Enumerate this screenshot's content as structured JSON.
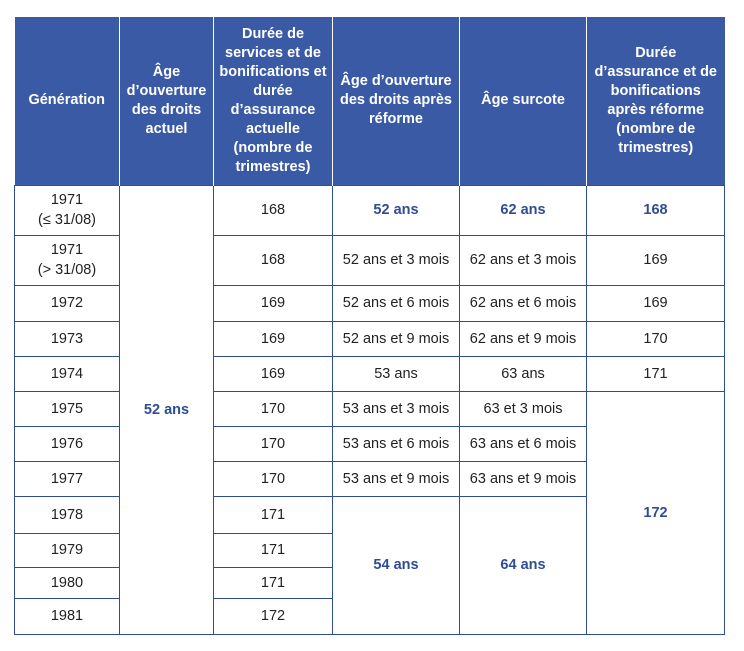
{
  "headers": [
    "Génération",
    "Âge d’ouverture des droits actuel",
    "Durée de services et de bonifications et durée d’assurance actuelle (nombre de trimestres)",
    "Âge d’ouverture des droits après réforme",
    "Âge surcote",
    "Durée d’assurance et de bonifications après réforme (nombre de trimestres)"
  ],
  "current_opening_age": "52 ans",
  "rows": [
    {
      "gen": "1971",
      "gen_sub": "(≤ 31/08)",
      "duration": "168",
      "new_age": "52 ans",
      "surcote": "62 ans",
      "new_duration": "168"
    },
    {
      "gen": "1971",
      "gen_sub": "(> 31/08)",
      "duration": "168",
      "new_age": "52 ans et 3 mois",
      "surcote": "62 ans et 3 mois",
      "new_duration": "169"
    },
    {
      "gen": "1972",
      "duration": "169",
      "new_age": "52 ans et 6 mois",
      "surcote": "62 ans et 6 mois",
      "new_duration": "169"
    },
    {
      "gen": "1973",
      "duration": "169",
      "new_age": "52 ans et 9 mois",
      "surcote": "62 ans et 9 mois",
      "new_duration": "170"
    },
    {
      "gen": "1974",
      "duration": "169",
      "new_age": "53 ans",
      "surcote": "63 ans",
      "new_duration": "171"
    },
    {
      "gen": "1975",
      "duration": "170",
      "new_age": "53 ans et 3 mois",
      "surcote": "63 et 3 mois"
    },
    {
      "gen": "1976",
      "duration": "170",
      "new_age": "53 ans et 6 mois",
      "surcote": "63 ans et 6 mois"
    },
    {
      "gen": "1977",
      "duration": "170",
      "new_age": "53 ans et 9 mois",
      "surcote": "63 ans et 9 mois"
    },
    {
      "gen": "1978",
      "duration": "171"
    },
    {
      "gen": "1979",
      "duration": "171"
    },
    {
      "gen": "1980",
      "duration": "171"
    },
    {
      "gen": "1981",
      "duration": "172"
    }
  ],
  "merged_new_age": "54 ans",
  "merged_surcote": "64 ans",
  "merged_new_duration": "172",
  "colors": {
    "header_bg": "#3b5aa6",
    "header_text": "#ffffff",
    "highlight_text": "#2f4d94",
    "border": "#2f4d94"
  }
}
